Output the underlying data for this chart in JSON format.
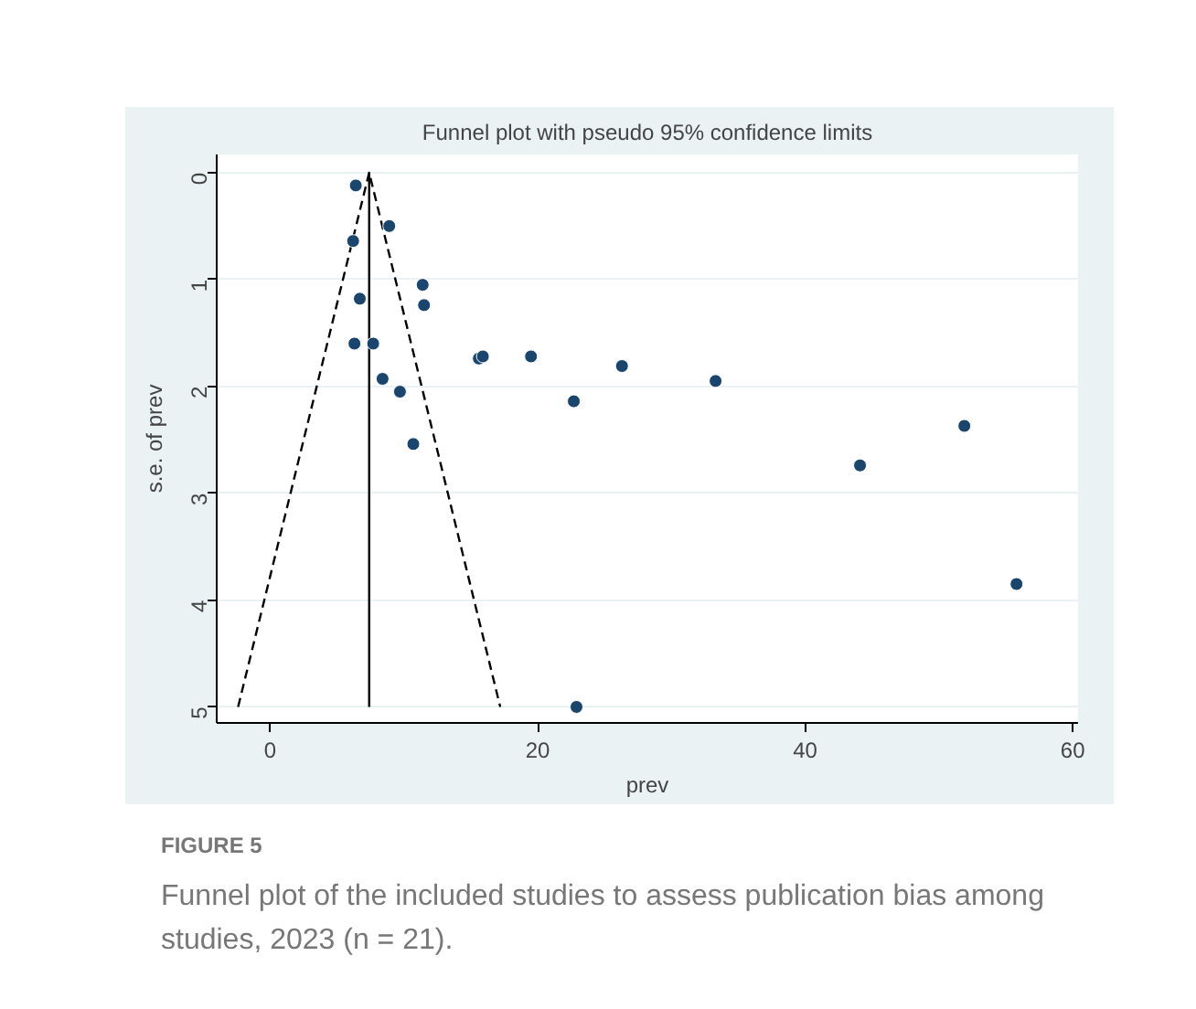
{
  "chart_data": {
    "type": "scatter",
    "title": "Funnel plot with pseudo 95% confidence limits",
    "xlabel": "prev",
    "ylabel": "s.e. of prev",
    "xlim": [
      -4,
      60.4
    ],
    "ylim": [
      5.15,
      -0.17
    ],
    "xticks": [
      0,
      20,
      40,
      60
    ],
    "yticks": [
      0,
      1,
      2,
      3,
      4,
      5
    ],
    "grid": "y",
    "series": [
      {
        "marker": "circle",
        "color": "#1a466e",
        "x": [
          6.4,
          8.9,
          6.2,
          11.4,
          6.7,
          11.5,
          6.3,
          7.7,
          8.4,
          9.7,
          10.7,
          15.6,
          15.9,
          19.5,
          22.7,
          26.3,
          33.3,
          44.1,
          51.9,
          55.8,
          22.9
        ],
        "values": [
          0.12,
          0.5,
          0.64,
          1.05,
          1.18,
          1.24,
          1.6,
          1.6,
          1.93,
          2.05,
          2.54,
          1.74,
          1.72,
          1.72,
          2.14,
          1.81,
          1.95,
          2.74,
          2.37,
          3.85,
          5.0
        ]
      },
      {
        "type": "line",
        "color": "#000000",
        "line_style": "dashed",
        "x": [
          -2.4,
          7.4,
          17.2
        ],
        "values": [
          5,
          0,
          5
        ]
      },
      {
        "type": "line",
        "color": "#000000",
        "line_style": "solid",
        "x": [
          7.4,
          7.4
        ],
        "values": [
          0,
          5
        ]
      }
    ],
    "annotations": [
      "FIGURE 5",
      "Funnel plot of the included studies to assess publication bias among",
      "studies, 2023 (n = 21)."
    ]
  }
}
